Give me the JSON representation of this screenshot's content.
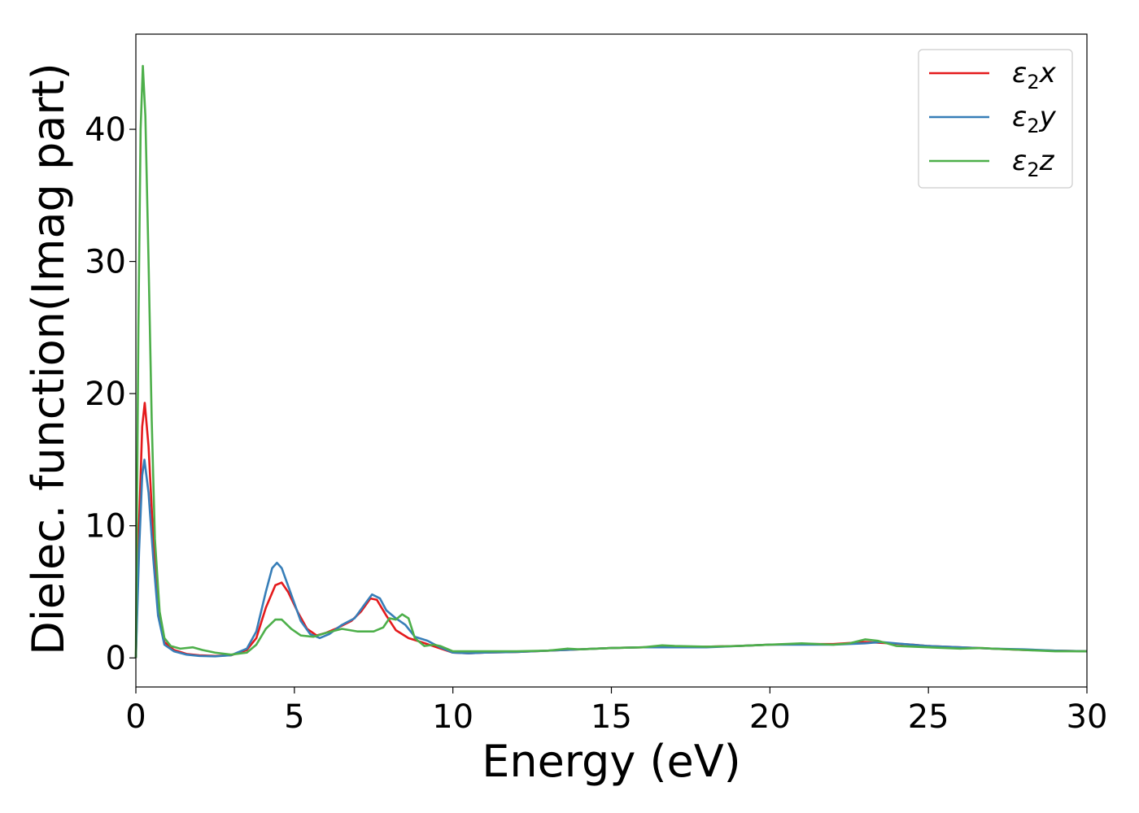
{
  "chart_data": {
    "type": "line",
    "title": "",
    "xlabel": "Energy (eV)",
    "ylabel": "Dielec. function(Imag part)",
    "xlim": [
      0,
      30
    ],
    "ylim": [
      -2.2,
      47.2
    ],
    "xticks": [
      0,
      5,
      10,
      15,
      20,
      25,
      30
    ],
    "xtick_labels": [
      "0",
      "5",
      "10",
      "15",
      "20",
      "25",
      "30"
    ],
    "yticks": [
      0,
      10,
      20,
      30,
      40
    ],
    "ytick_labels": [
      "0",
      "10",
      "20",
      "30",
      "40"
    ],
    "grid": false,
    "legend_position": "top-right",
    "series": [
      {
        "name": "ε₂x",
        "legend_base": "ε",
        "legend_sub": "2",
        "legend_tail": "x",
        "color": "#e41a1c",
        "points": [
          [
            0,
            0
          ],
          [
            0.1,
            10
          ],
          [
            0.2,
            17.5
          ],
          [
            0.28,
            19.3
          ],
          [
            0.4,
            16
          ],
          [
            0.55,
            9
          ],
          [
            0.7,
            4
          ],
          [
            0.9,
            1.2
          ],
          [
            1.2,
            0.6
          ],
          [
            1.6,
            0.3
          ],
          [
            2.0,
            0.2
          ],
          [
            2.5,
            0.15
          ],
          [
            3.0,
            0.2
          ],
          [
            3.5,
            0.6
          ],
          [
            3.8,
            1.5
          ],
          [
            4.1,
            3.8
          ],
          [
            4.4,
            5.5
          ],
          [
            4.6,
            5.7
          ],
          [
            4.8,
            5.0
          ],
          [
            5.1,
            3.5
          ],
          [
            5.4,
            2.2
          ],
          [
            5.7,
            1.7
          ],
          [
            6.0,
            1.9
          ],
          [
            6.3,
            2.2
          ],
          [
            6.8,
            2.8
          ],
          [
            7.1,
            3.5
          ],
          [
            7.4,
            4.5
          ],
          [
            7.6,
            4.4
          ],
          [
            7.9,
            3.2
          ],
          [
            8.2,
            2.1
          ],
          [
            8.6,
            1.5
          ],
          [
            9.0,
            1.2
          ],
          [
            9.5,
            0.8
          ],
          [
            10.0,
            0.4
          ],
          [
            10.5,
            0.35
          ],
          [
            11,
            0.4
          ],
          [
            12,
            0.45
          ],
          [
            13,
            0.55
          ],
          [
            14,
            0.65
          ],
          [
            15,
            0.75
          ],
          [
            16,
            0.8
          ],
          [
            17,
            0.85
          ],
          [
            18,
            0.85
          ],
          [
            19,
            0.9
          ],
          [
            20,
            1.0
          ],
          [
            21,
            1.05
          ],
          [
            22,
            1.05
          ],
          [
            23,
            1.2
          ],
          [
            23.8,
            1.1
          ],
          [
            24.5,
            1.0
          ],
          [
            25,
            0.9
          ],
          [
            26,
            0.8
          ],
          [
            27,
            0.7
          ],
          [
            28,
            0.6
          ],
          [
            29,
            0.55
          ],
          [
            30,
            0.5
          ]
        ]
      },
      {
        "name": "ε₂y",
        "legend_base": "ε",
        "legend_sub": "2",
        "legend_tail": "y",
        "color": "#377eb8",
        "points": [
          [
            0,
            0
          ],
          [
            0.1,
            8
          ],
          [
            0.2,
            13.8
          ],
          [
            0.27,
            15
          ],
          [
            0.4,
            12.5
          ],
          [
            0.55,
            7.5
          ],
          [
            0.7,
            3.2
          ],
          [
            0.9,
            1.0
          ],
          [
            1.2,
            0.5
          ],
          [
            1.6,
            0.25
          ],
          [
            2.0,
            0.15
          ],
          [
            2.5,
            0.12
          ],
          [
            3.0,
            0.2
          ],
          [
            3.5,
            0.7
          ],
          [
            3.8,
            2.0
          ],
          [
            4.1,
            5.0
          ],
          [
            4.3,
            6.8
          ],
          [
            4.45,
            7.2
          ],
          [
            4.6,
            6.8
          ],
          [
            4.9,
            4.8
          ],
          [
            5.2,
            2.8
          ],
          [
            5.5,
            1.8
          ],
          [
            5.8,
            1.5
          ],
          [
            6.1,
            1.8
          ],
          [
            6.5,
            2.5
          ],
          [
            6.9,
            3.0
          ],
          [
            7.2,
            4.0
          ],
          [
            7.45,
            4.8
          ],
          [
            7.7,
            4.5
          ],
          [
            7.9,
            3.6
          ],
          [
            8.2,
            3.0
          ],
          [
            8.5,
            2.5
          ],
          [
            8.8,
            1.6
          ],
          [
            9.2,
            1.3
          ],
          [
            9.6,
            0.8
          ],
          [
            10.0,
            0.4
          ],
          [
            10.5,
            0.35
          ],
          [
            11,
            0.4
          ],
          [
            12,
            0.45
          ],
          [
            13,
            0.55
          ],
          [
            14,
            0.65
          ],
          [
            15,
            0.75
          ],
          [
            16,
            0.8
          ],
          [
            17,
            0.8
          ],
          [
            18,
            0.8
          ],
          [
            19,
            0.9
          ],
          [
            20,
            1.0
          ],
          [
            21,
            1.0
          ],
          [
            22,
            1.0
          ],
          [
            23,
            1.1
          ],
          [
            23.5,
            1.2
          ],
          [
            24,
            1.1
          ],
          [
            25,
            0.9
          ],
          [
            26,
            0.8
          ],
          [
            27,
            0.7
          ],
          [
            28,
            0.65
          ],
          [
            29,
            0.55
          ],
          [
            30,
            0.5
          ]
        ]
      },
      {
        "name": "ε₂z",
        "legend_base": "ε",
        "legend_sub": "2",
        "legend_tail": "z",
        "color": "#4daf4a",
        "points": [
          [
            0,
            0
          ],
          [
            0.08,
            25
          ],
          [
            0.15,
            40
          ],
          [
            0.22,
            44.8
          ],
          [
            0.3,
            41
          ],
          [
            0.4,
            30
          ],
          [
            0.5,
            18
          ],
          [
            0.6,
            9
          ],
          [
            0.75,
            3.5
          ],
          [
            0.9,
            1.5
          ],
          [
            1.1,
            0.9
          ],
          [
            1.4,
            0.7
          ],
          [
            1.8,
            0.8
          ],
          [
            2.1,
            0.6
          ],
          [
            2.5,
            0.4
          ],
          [
            3.0,
            0.25
          ],
          [
            3.5,
            0.4
          ],
          [
            3.8,
            1.0
          ],
          [
            4.1,
            2.2
          ],
          [
            4.4,
            2.9
          ],
          [
            4.6,
            2.9
          ],
          [
            4.9,
            2.2
          ],
          [
            5.2,
            1.7
          ],
          [
            5.6,
            1.6
          ],
          [
            6.0,
            1.9
          ],
          [
            6.5,
            2.2
          ],
          [
            7.0,
            2.0
          ],
          [
            7.5,
            2.0
          ],
          [
            7.8,
            2.3
          ],
          [
            8.0,
            3.0
          ],
          [
            8.2,
            2.9
          ],
          [
            8.4,
            3.3
          ],
          [
            8.6,
            3.0
          ],
          [
            8.8,
            1.5
          ],
          [
            9.1,
            0.9
          ],
          [
            9.4,
            1.0
          ],
          [
            9.6,
            0.9
          ],
          [
            10.0,
            0.5
          ],
          [
            10.5,
            0.5
          ],
          [
            11,
            0.5
          ],
          [
            12,
            0.5
          ],
          [
            13,
            0.55
          ],
          [
            13.6,
            0.7
          ],
          [
            14,
            0.65
          ],
          [
            15,
            0.75
          ],
          [
            16,
            0.8
          ],
          [
            16.6,
            0.95
          ],
          [
            17,
            0.9
          ],
          [
            18,
            0.85
          ],
          [
            19,
            0.9
          ],
          [
            20,
            1.0
          ],
          [
            21,
            1.1
          ],
          [
            22,
            1.0
          ],
          [
            22.5,
            1.1
          ],
          [
            23,
            1.4
          ],
          [
            23.4,
            1.3
          ],
          [
            24,
            0.9
          ],
          [
            25,
            0.8
          ],
          [
            26,
            0.7
          ],
          [
            26.7,
            0.75
          ],
          [
            27,
            0.7
          ],
          [
            28,
            0.6
          ],
          [
            29,
            0.5
          ],
          [
            30,
            0.5
          ]
        ]
      }
    ]
  }
}
